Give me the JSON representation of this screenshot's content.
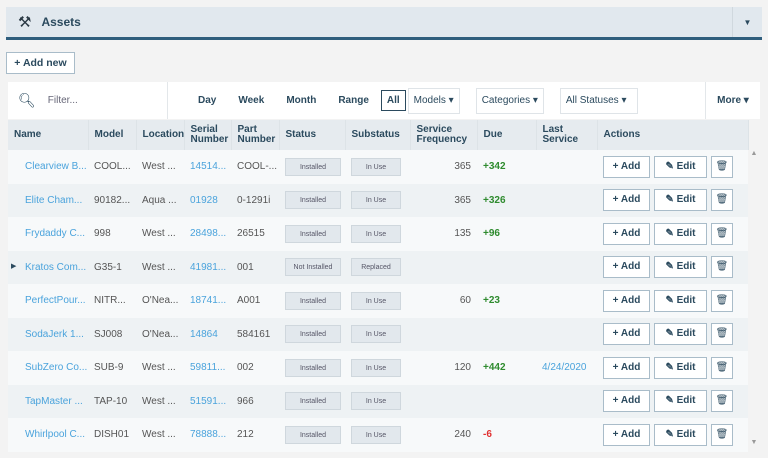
{
  "header": {
    "title": "Assets",
    "icon": "tools-icon"
  },
  "add_new": "+ Add new",
  "filter": {
    "placeholder": "Filter...",
    "time_tabs": [
      "Day",
      "Week",
      "Month",
      "Range"
    ],
    "all": "All",
    "models": "Models ▾",
    "categories": "Categories ▾",
    "statuses": "All Statuses ▾",
    "more": "More ▾"
  },
  "columns": [
    "Name",
    "Model",
    "Location",
    "Serial Number",
    "Part Number",
    "Status",
    "Substatus",
    "Service Frequency",
    "Due",
    "Last Service",
    "Actions"
  ],
  "rows": [
    {
      "name": "Clearview B...",
      "model": "COOL...",
      "location": "West ...",
      "serial": "14514...",
      "part": "COOL-...",
      "status": "Installed",
      "substatus": "In Use",
      "freq": "365",
      "due": "+342",
      "last": ""
    },
    {
      "name": "Elite Cham...",
      "model": "90182...",
      "location": "Aqua ...",
      "serial": "01928",
      "part": "0-1291i",
      "status": "Installed",
      "substatus": "In Use",
      "freq": "365",
      "due": "+326",
      "last": ""
    },
    {
      "name": "Frydaddy C...",
      "model": "998",
      "location": "West ...",
      "serial": "28498...",
      "part": "26515",
      "status": "Installed",
      "substatus": "In Use",
      "freq": "135",
      "due": "+96",
      "last": ""
    },
    {
      "name": "Kratos Com...",
      "model": "G35-1",
      "location": "West ...",
      "serial": "41981...",
      "part": "001",
      "status": "Not Installed",
      "substatus": "Replaced",
      "freq": "",
      "due": "",
      "last": "",
      "expand": "▶"
    },
    {
      "name": "PerfectPour...",
      "model": "NITR...",
      "location": "O'Nea...",
      "serial": "18741...",
      "part": "A001",
      "status": "Installed",
      "substatus": "In Use",
      "freq": "60",
      "due": "+23",
      "last": ""
    },
    {
      "name": "SodaJerk 1...",
      "model": "SJ008",
      "location": "O'Nea...",
      "serial": "14864",
      "part": "584161",
      "status": "Installed",
      "substatus": "In Use",
      "freq": "",
      "due": "",
      "last": ""
    },
    {
      "name": "SubZero Co...",
      "model": "SUB-9",
      "location": "West ...",
      "serial": "59811...",
      "part": "002",
      "status": "Installed",
      "substatus": "In Use",
      "freq": "120",
      "due": "+442",
      "last": "4/24/2020"
    },
    {
      "name": "TapMaster ...",
      "model": "TAP-10",
      "location": "West ...",
      "serial": "51591...",
      "part": "966",
      "status": "Installed",
      "substatus": "In Use",
      "freq": "",
      "due": "",
      "last": ""
    },
    {
      "name": "Whirlpool C...",
      "model": "DISH01",
      "location": "West ...",
      "serial": "78888...",
      "part": "212",
      "status": "Installed",
      "substatus": "In Use",
      "freq": "240",
      "due": "-6",
      "last": ""
    }
  ],
  "actions": {
    "add": "+ Add",
    "edit": "✎ Edit",
    "delete": "🗑"
  },
  "colors": {
    "accent": "#2f5e7d",
    "link": "#4aa3dc",
    "positive": "#2e8b2e",
    "negative": "#e03030"
  }
}
